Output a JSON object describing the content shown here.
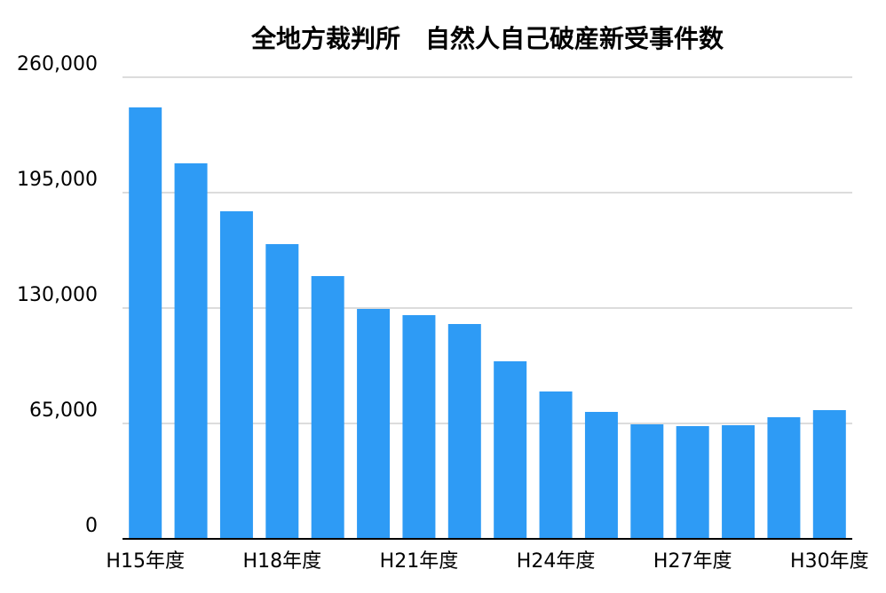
{
  "chart_data": {
    "type": "bar",
    "title": "全地方裁判所　自然人自己破産新受事件数",
    "categories": [
      "H15年度",
      null,
      null,
      "H18年度",
      null,
      null,
      "H21年度",
      null,
      null,
      "H24年度",
      null,
      null,
      "H27年度",
      null,
      null,
      "H30年度"
    ],
    "values": [
      243000,
      211500,
      184500,
      166000,
      148000,
      129500,
      126000,
      121000,
      100000,
      83000,
      71500,
      64500,
      63500,
      64000,
      68500,
      72500
    ],
    "color": "#2e9bf5",
    "ylim": [
      0,
      260000
    ],
    "yticks": [
      0,
      {
        "value": 65000,
        "label": "65,000"
      },
      {
        "value": 130000,
        "label": "130,000"
      },
      {
        "value": 195000,
        "label": "195,000"
      },
      {
        "value": 260000,
        "label": "260,000"
      }
    ],
    "grid": true
  }
}
